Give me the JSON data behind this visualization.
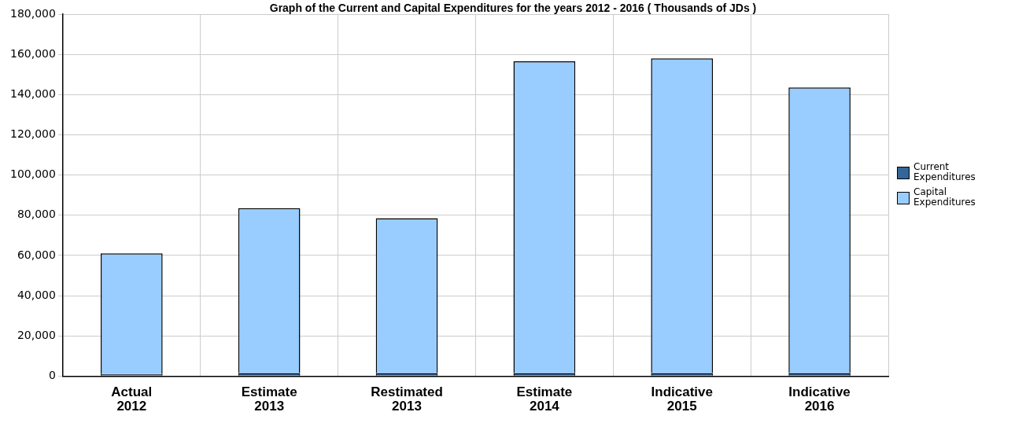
{
  "chart_data": {
    "type": "bar",
    "title": "Graph of the Current and Capital Expenditures for the years 2012 - 2016     ( Thousands of JDs )",
    "categories": [
      "Actual 2012",
      "Estimate 2013",
      "Restimated 2013",
      "Estimate 2014",
      "Indicative 2015",
      "Indicative 2016"
    ],
    "stacked": true,
    "series": [
      {
        "name": "Current Expenditures",
        "color": "#336699",
        "values": [
          1000,
          1500,
          1500,
          1500,
          1500,
          1500
        ]
      },
      {
        "name": "Capital Expenditures",
        "color": "#99ccff",
        "values": [
          60000,
          82000,
          77000,
          155000,
          156500,
          142000
        ]
      }
    ],
    "ylim": [
      0,
      180000
    ],
    "yticks": [
      0,
      {
        "value": 20000,
        "label": "20,000"
      },
      {
        "value": 40000,
        "label": "40,000"
      },
      {
        "value": 60000,
        "label": "60,000"
      },
      {
        "value": 80000,
        "label": "80,000"
      },
      {
        "value": 100000,
        "label": "100,000"
      },
      {
        "value": 120000,
        "label": "120,000"
      },
      {
        "value": 140000,
        "label": "140,000"
      },
      {
        "value": 160000,
        "label": "160,000"
      },
      {
        "value": 180000,
        "label": "180,000"
      }
    ],
    "grid": true,
    "legend": "right"
  }
}
